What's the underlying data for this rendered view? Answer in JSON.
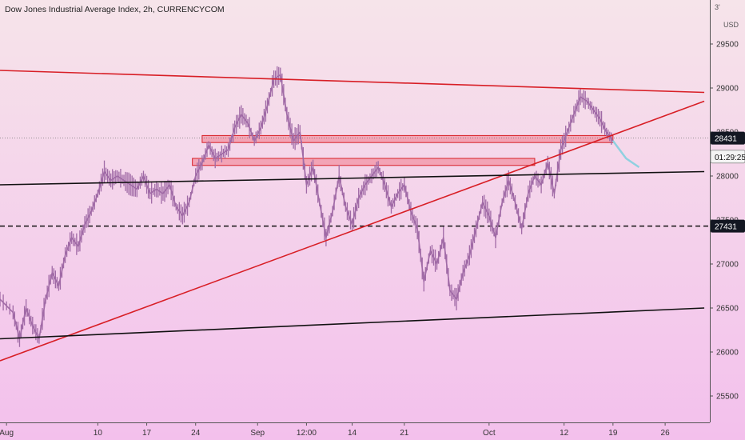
{
  "header": {
    "title": "Dow Jones Industrial Average Index, 2h, CURRENCYCOM",
    "corner": "3'",
    "unit": "USD"
  },
  "colors": {
    "bg_top": "#f6e4ea",
    "bg_bottom": "#f3c0ec",
    "candle": "#a06aa6",
    "candle_light": "#8fd0e0",
    "trend_red": "#d81f26",
    "trend_black": "#111111",
    "zone_fill": "#f07a8a",
    "zone_border": "#d81f26",
    "axis_text": "#333333"
  },
  "chart_data": {
    "type": "line",
    "title": "Dow Jones Industrial Average Index, 2h, CURRENCYCOM",
    "ylabel": "USD",
    "ylim": [
      25200,
      30000
    ],
    "xlim": [
      0,
      95
    ],
    "y_ticks": [
      25500,
      26000,
      26500,
      27000,
      27500,
      28000,
      28500,
      29000,
      29500
    ],
    "x_ticks": [
      {
        "x": 1.0,
        "label": "Aug"
      },
      {
        "x": 15.0,
        "label": "10"
      },
      {
        "x": 22.5,
        "label": "17"
      },
      {
        "x": 30.0,
        "label": "24"
      },
      {
        "x": 39.5,
        "label": "Sep"
      },
      {
        "x": 47.0,
        "label": "12:00"
      },
      {
        "x": 54.0,
        "label": "14"
      },
      {
        "x": 62.0,
        "label": "21"
      },
      {
        "x": 75.0,
        "label": "Oct"
      },
      {
        "x": 86.5,
        "label": "12"
      },
      {
        "x": 94.0,
        "label": "19"
      },
      {
        "x": 102.0,
        "label": "26"
      }
    ],
    "price_series": [
      [
        0,
        26600
      ],
      [
        2,
        26450
      ],
      [
        3,
        26150
      ],
      [
        4,
        26500
      ],
      [
        5,
        26300
      ],
      [
        6,
        26150
      ],
      [
        7,
        26600
      ],
      [
        8,
        26900
      ],
      [
        9,
        26750
      ],
      [
        10,
        27100
      ],
      [
        11,
        27300
      ],
      [
        12,
        27200
      ],
      [
        13,
        27450
      ],
      [
        14,
        27600
      ],
      [
        15,
        27800
      ],
      [
        16,
        28050
      ],
      [
        17,
        27950
      ],
      [
        18,
        28000
      ],
      [
        19,
        27950
      ],
      [
        20,
        27900
      ],
      [
        21,
        27850
      ],
      [
        22,
        28000
      ],
      [
        23,
        27800
      ],
      [
        24,
        27850
      ],
      [
        25,
        27800
      ],
      [
        26,
        27900
      ],
      [
        27,
        27650
      ],
      [
        28,
        27550
      ],
      [
        29,
        27700
      ],
      [
        30,
        28000
      ],
      [
        31,
        28150
      ],
      [
        32,
        28350
      ],
      [
        33,
        28200
      ],
      [
        34,
        28250
      ],
      [
        35,
        28300
      ],
      [
        36,
        28550
      ],
      [
        37,
        28700
      ],
      [
        38,
        28600
      ],
      [
        39,
        28400
      ],
      [
        40,
        28550
      ],
      [
        41,
        28800
      ],
      [
        42,
        29100
      ],
      [
        43,
        29150
      ],
      [
        44,
        28700
      ],
      [
        45,
        28400
      ],
      [
        46,
        28500
      ],
      [
        47,
        27900
      ],
      [
        48,
        28100
      ],
      [
        49,
        27700
      ],
      [
        50,
        27300
      ],
      [
        51,
        27600
      ],
      [
        52,
        28000
      ],
      [
        53,
        27650
      ],
      [
        54,
        27450
      ],
      [
        55,
        27750
      ],
      [
        56,
        27900
      ],
      [
        57,
        28000
      ],
      [
        58,
        28100
      ],
      [
        59,
        27900
      ],
      [
        60,
        27650
      ],
      [
        61,
        27800
      ],
      [
        62,
        27900
      ],
      [
        63,
        27600
      ],
      [
        64,
        27400
      ],
      [
        65,
        26800
      ],
      [
        66,
        27150
      ],
      [
        67,
        27000
      ],
      [
        68,
        27300
      ],
      [
        69,
        26700
      ],
      [
        70,
        26600
      ],
      [
        71,
        26900
      ],
      [
        72,
        27100
      ],
      [
        73,
        27400
      ],
      [
        74,
        27700
      ],
      [
        75,
        27550
      ],
      [
        76,
        27300
      ],
      [
        77,
        27700
      ],
      [
        78,
        27950
      ],
      [
        79,
        27700
      ],
      [
        80,
        27400
      ],
      [
        81,
        27800
      ],
      [
        82,
        28000
      ],
      [
        83,
        27900
      ],
      [
        84,
        28150
      ],
      [
        85,
        27800
      ],
      [
        86,
        28300
      ],
      [
        87,
        28500
      ],
      [
        88,
        28700
      ],
      [
        89,
        28900
      ],
      [
        90,
        28850
      ],
      [
        91,
        28750
      ],
      [
        92,
        28650
      ],
      [
        93,
        28500
      ],
      [
        94,
        28400
      ]
    ],
    "projection_series": [
      [
        94,
        28400
      ],
      [
        95,
        28300
      ],
      [
        96,
        28200
      ],
      [
        97,
        28150
      ],
      [
        98,
        28100
      ]
    ],
    "trendlines": [
      {
        "name": "upper-red-trendline",
        "color": "red",
        "points": [
          [
            0,
            29200
          ],
          [
            108,
            28950
          ]
        ]
      },
      {
        "name": "rising-red-trendline",
        "color": "red",
        "points": [
          [
            0,
            25900
          ],
          [
            108,
            28850
          ]
        ]
      },
      {
        "name": "middle-black-trendline",
        "color": "black",
        "points": [
          [
            0,
            27900
          ],
          [
            108,
            28050
          ]
        ]
      },
      {
        "name": "lower-black-trendline",
        "color": "black",
        "points": [
          [
            0,
            26150
          ],
          [
            108,
            26500
          ]
        ]
      }
    ],
    "zones": [
      {
        "name": "upper-resistance-zone",
        "x": [
          31,
          94
        ],
        "y": [
          28380,
          28460
        ]
      },
      {
        "name": "lower-support-zone",
        "x": [
          29.5,
          82
        ],
        "y": [
          28120,
          28200
        ]
      }
    ],
    "hlines": [
      {
        "name": "dashed-level-line",
        "value": 27431,
        "style": "dashed"
      },
      {
        "name": "dotted-price-line",
        "value": 28431,
        "style": "dotted"
      }
    ],
    "price_labels": [
      {
        "name": "current-price-label",
        "value": 28431,
        "text": "28431",
        "style": "dark"
      },
      {
        "name": "countdown-label",
        "value": 28220,
        "text": "01:29:25",
        "style": "light"
      },
      {
        "name": "level-price-label",
        "value": 27431,
        "text": "27431",
        "style": "dark"
      }
    ]
  }
}
